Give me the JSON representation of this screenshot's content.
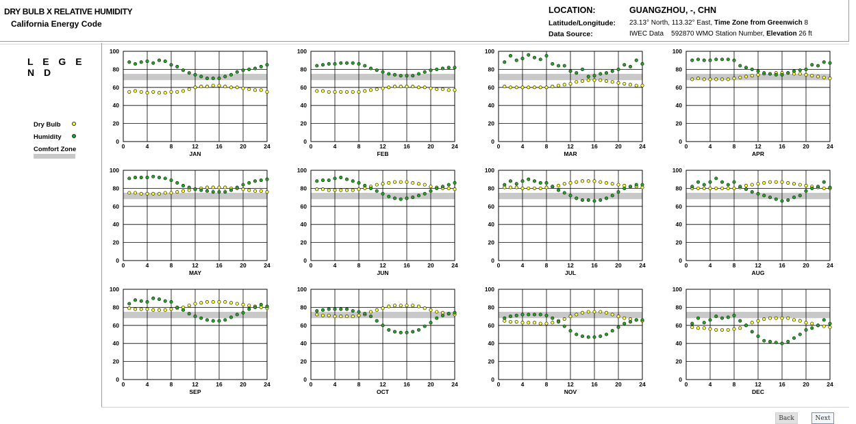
{
  "header": {
    "title_line1": "DRY BULB  X  RELATIVE HUMIDITY",
    "title_line2": "California Energy Code",
    "location_label": "LOCATION:",
    "location_value": "GUANGZHOU, -, CHN",
    "latlon_label": "Latitude/Longitude:",
    "latlon_value": "23.13° North, 113.32° East,",
    "timezone_label": "Time Zone from Greenwich",
    "timezone_value": "8",
    "source_label": "Data Source:",
    "source_value": "IWEC Data",
    "station_value": "592870 WMO Station Number,",
    "elevation_label": "Elevation",
    "elevation_value": "26 ft"
  },
  "legend": {
    "title": "L E G E N D",
    "dry_bulb": "Dry Bulb",
    "humidity": "Humidity",
    "comfort_zone": "Comfort Zone"
  },
  "colors": {
    "dry_bulb": "#ffff3c",
    "humidity": "#1fa81f",
    "comfort_zone": "#c8c8c8",
    "marker_edge": "#222222",
    "grid": "#000000"
  },
  "nav": {
    "back": "Back",
    "next": "Next"
  },
  "chart_data": {
    "type": "scatter",
    "x_ticks": [
      0,
      4,
      8,
      12,
      16,
      20,
      24
    ],
    "y_ticks": [
      0,
      20,
      40,
      60,
      80,
      100
    ],
    "xlim": [
      0,
      24
    ],
    "ylim": [
      0,
      100
    ],
    "comfort_zone": [
      68,
      75
    ],
    "grid": true,
    "x_values": [
      1,
      2,
      3,
      4,
      5,
      6,
      7,
      8,
      9,
      10,
      11,
      12,
      13,
      14,
      15,
      16,
      17,
      18,
      19,
      20,
      21,
      22,
      23,
      24
    ],
    "series_names": [
      "Dry Bulb",
      "Humidity"
    ],
    "charts": [
      {
        "month": "JAN",
        "dry_bulb": [
          55,
          56,
          55,
          54,
          55,
          54,
          54,
          55,
          55,
          56,
          58,
          60,
          61,
          61,
          62,
          62,
          61,
          60,
          60,
          59,
          58,
          57,
          57,
          55
        ],
        "humidity": [
          88,
          86,
          88,
          89,
          87,
          90,
          89,
          85,
          83,
          79,
          76,
          74,
          72,
          70,
          70,
          70,
          72,
          74,
          77,
          79,
          80,
          81,
          83,
          85
        ]
      },
      {
        "month": "FEB",
        "dry_bulb": [
          56,
          56,
          55,
          55,
          55,
          55,
          55,
          55,
          56,
          57,
          58,
          59,
          60,
          61,
          61,
          61,
          61,
          60,
          60,
          59,
          58,
          58,
          57,
          57
        ],
        "humidity": [
          84,
          85,
          86,
          86,
          87,
          87,
          87,
          86,
          84,
          81,
          79,
          77,
          75,
          74,
          73,
          73,
          73,
          75,
          77,
          79,
          80,
          81,
          82,
          82
        ]
      },
      {
        "month": "MAR",
        "dry_bulb": [
          61,
          60,
          60,
          60,
          60,
          60,
          60,
          60,
          61,
          62,
          63,
          64,
          66,
          67,
          68,
          68,
          68,
          67,
          66,
          65,
          64,
          63,
          62,
          62
        ],
        "humidity": [
          88,
          95,
          90,
          92,
          96,
          93,
          91,
          95,
          86,
          84,
          84,
          78,
          76,
          80,
          72,
          73,
          75,
          76,
          78,
          80,
          85,
          83,
          90,
          86
        ]
      },
      {
        "month": "APR",
        "dry_bulb": [
          69,
          70,
          69,
          69,
          69,
          69,
          69,
          70,
          71,
          72,
          73,
          74,
          75,
          75,
          76,
          76,
          76,
          75,
          75,
          74,
          73,
          72,
          71,
          70
        ],
        "humidity": [
          90,
          91,
          90,
          90,
          91,
          91,
          91,
          90,
          84,
          82,
          80,
          78,
          76,
          75,
          74,
          74,
          76,
          78,
          79,
          80,
          85,
          84,
          88,
          87
        ]
      },
      {
        "month": "MAY",
        "dry_bulb": [
          75,
          75,
          74,
          74,
          74,
          74,
          75,
          75,
          76,
          77,
          78,
          79,
          80,
          81,
          81,
          81,
          81,
          80,
          80,
          79,
          78,
          77,
          77,
          76
        ],
        "humidity": [
          91,
          92,
          92,
          92,
          93,
          92,
          91,
          89,
          86,
          83,
          81,
          79,
          78,
          77,
          76,
          76,
          76,
          78,
          81,
          84,
          86,
          88,
          89,
          90
        ]
      },
      {
        "month": "JUN",
        "dry_bulb": [
          79,
          79,
          78,
          78,
          78,
          78,
          78,
          79,
          80,
          82,
          84,
          85,
          86,
          87,
          87,
          87,
          86,
          85,
          84,
          82,
          81,
          80,
          80,
          79
        ],
        "humidity": [
          88,
          89,
          89,
          91,
          92,
          90,
          88,
          86,
          83,
          80,
          77,
          74,
          71,
          69,
          68,
          69,
          70,
          72,
          74,
          77,
          80,
          82,
          84,
          86
        ]
      },
      {
        "month": "JUL",
        "dry_bulb": [
          81,
          81,
          81,
          80,
          80,
          80,
          80,
          81,
          82,
          83,
          85,
          86,
          87,
          88,
          88,
          88,
          87,
          86,
          85,
          84,
          83,
          82,
          82,
          81
        ],
        "humidity": [
          84,
          88,
          85,
          88,
          90,
          88,
          86,
          86,
          82,
          78,
          75,
          72,
          69,
          67,
          67,
          66,
          67,
          69,
          72,
          76,
          80,
          82,
          84,
          84
        ]
      },
      {
        "month": "AUG",
        "dry_bulb": [
          80,
          80,
          80,
          80,
          80,
          80,
          80,
          80,
          81,
          83,
          84,
          85,
          86,
          87,
          87,
          87,
          86,
          85,
          84,
          83,
          82,
          81,
          80,
          80
        ],
        "humidity": [
          82,
          87,
          84,
          87,
          91,
          87,
          84,
          87,
          82,
          79,
          76,
          74,
          72,
          70,
          68,
          66,
          67,
          70,
          72,
          77,
          80,
          82,
          87,
          81
        ]
      },
      {
        "month": "SEP",
        "dry_bulb": [
          79,
          78,
          78,
          78,
          77,
          77,
          77,
          78,
          79,
          80,
          82,
          84,
          85,
          86,
          86,
          86,
          86,
          85,
          84,
          83,
          82,
          81,
          80,
          79
        ],
        "humidity": [
          84,
          88,
          87,
          86,
          90,
          89,
          87,
          86,
          80,
          77,
          73,
          70,
          68,
          66,
          65,
          65,
          66,
          69,
          72,
          74,
          78,
          80,
          83,
          81
        ]
      },
      {
        "month": "OCT",
        "dry_bulb": [
          72,
          71,
          71,
          70,
          70,
          70,
          70,
          71,
          72,
          75,
          77,
          79,
          81,
          82,
          82,
          82,
          82,
          81,
          79,
          77,
          75,
          74,
          73,
          72
        ],
        "humidity": [
          76,
          77,
          78,
          78,
          78,
          78,
          76,
          75,
          73,
          70,
          65,
          60,
          55,
          53,
          52,
          52,
          53,
          55,
          59,
          63,
          68,
          71,
          73,
          74
        ]
      },
      {
        "month": "NOV",
        "dry_bulb": [
          65,
          64,
          64,
          63,
          63,
          63,
          62,
          62,
          63,
          65,
          67,
          70,
          72,
          74,
          75,
          75,
          75,
          74,
          72,
          70,
          68,
          67,
          66,
          65
        ],
        "humidity": [
          68,
          70,
          71,
          72,
          72,
          72,
          72,
          71,
          68,
          64,
          59,
          54,
          50,
          48,
          47,
          47,
          48,
          50,
          54,
          58,
          62,
          64,
          66,
          66
        ]
      },
      {
        "month": "DEC",
        "dry_bulb": [
          58,
          57,
          57,
          56,
          55,
          55,
          55,
          56,
          57,
          60,
          63,
          65,
          67,
          68,
          68,
          68,
          68,
          66,
          65,
          63,
          62,
          60,
          59,
          58
        ],
        "humidity": [
          62,
          68,
          63,
          66,
          70,
          68,
          69,
          71,
          65,
          60,
          53,
          48,
          43,
          42,
          41,
          40,
          42,
          46,
          50,
          55,
          57,
          60,
          66,
          62
        ]
      }
    ]
  }
}
